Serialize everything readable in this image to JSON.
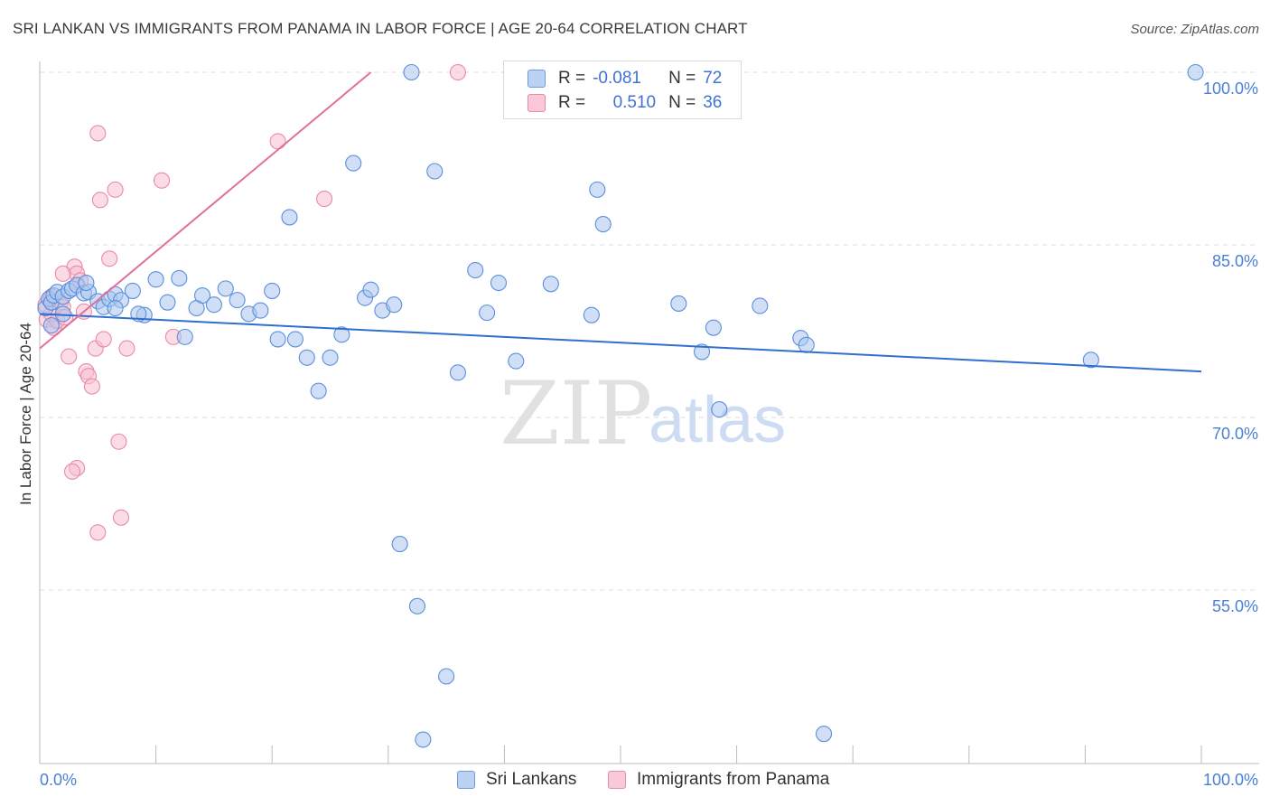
{
  "header": {
    "title": "SRI LANKAN VS IMMIGRANTS FROM PANAMA IN LABOR FORCE | AGE 20-64 CORRELATION CHART",
    "source": "Source: ZipAtlas.com"
  },
  "watermark": {
    "zip": "ZIP",
    "atlas": "atlas"
  },
  "colors": {
    "blue_fill": "#aac4ee",
    "blue_stroke": "#5b8fdc",
    "blue_line": "#2f6fcf",
    "pink_fill": "#f7bfd0",
    "pink_stroke": "#e88aa9",
    "pink_line": "#e0709a",
    "tick_text": "#4a7fd6",
    "grid": "#dcdcdc"
  },
  "legend": {
    "rows": [
      {
        "r_label": "R =",
        "r_value": "-0.081",
        "n_label": "N =",
        "n_value": "72"
      },
      {
        "r_label": "R =",
        "r_value": "0.510",
        "n_label": "N =",
        "n_value": "36"
      }
    ]
  },
  "bottom_legend": {
    "series1": "Sri Lankans",
    "series2": "Immigrants from Panama"
  },
  "chart_data": {
    "type": "scatter",
    "title": "SRI LANKAN VS IMMIGRANTS FROM PANAMA IN LABOR FORCE | AGE 20-64 CORRELATION CHART",
    "xlabel": "",
    "ylabel": "In Labor Force | Age 20-64",
    "xlim": [
      0,
      100
    ],
    "ylim": [
      40.5,
      101.5
    ],
    "x_tick_labels": [
      "0.0%",
      "100.0%"
    ],
    "y_ticks": [
      55,
      70,
      85,
      100
    ],
    "y_tick_labels": [
      "55.0%",
      "70.0%",
      "85.0%",
      "100.0%"
    ],
    "grid": true,
    "series": [
      {
        "name": "Sri Lankans",
        "R": -0.081,
        "N": 72,
        "trend": {
          "x": [
            0,
            100
          ],
          "y": [
            79.0,
            74.0
          ]
        },
        "points": [
          [
            0.5,
            79.5
          ],
          [
            0.8,
            80.3
          ],
          [
            1.0,
            80.0
          ],
          [
            1.2,
            80.6
          ],
          [
            1.5,
            80.9
          ],
          [
            2.0,
            80.5
          ],
          [
            2.5,
            81.0
          ],
          [
            2.8,
            81.2
          ],
          [
            3.2,
            81.5
          ],
          [
            3.8,
            80.8
          ],
          [
            4.2,
            80.9
          ],
          [
            5.0,
            80.1
          ],
          [
            5.5,
            79.6
          ],
          [
            6.0,
            80.3
          ],
          [
            6.5,
            80.7
          ],
          [
            7.0,
            80.2
          ],
          [
            8.0,
            81.0
          ],
          [
            9.0,
            78.9
          ],
          [
            8.5,
            79.0
          ],
          [
            10.0,
            82.0
          ],
          [
            11.0,
            80.0
          ],
          [
            12.0,
            82.1
          ],
          [
            12.5,
            77.0
          ],
          [
            13.5,
            79.5
          ],
          [
            14.0,
            80.6
          ],
          [
            15.0,
            79.8
          ],
          [
            16.0,
            81.2
          ],
          [
            17.0,
            80.2
          ],
          [
            18.0,
            79.0
          ],
          [
            19.0,
            79.3
          ],
          [
            20.0,
            81.0
          ],
          [
            20.5,
            76.8
          ],
          [
            21.5,
            87.4
          ],
          [
            22.0,
            76.8
          ],
          [
            23.0,
            75.2
          ],
          [
            24.0,
            72.3
          ],
          [
            25.0,
            75.2
          ],
          [
            26.0,
            77.2
          ],
          [
            27.0,
            92.1
          ],
          [
            28.0,
            80.4
          ],
          [
            28.5,
            81.1
          ],
          [
            29.5,
            79.3
          ],
          [
            30.5,
            79.8
          ],
          [
            31.0,
            59.0
          ],
          [
            32.0,
            100.0
          ],
          [
            32.5,
            53.6
          ],
          [
            33.0,
            42.0
          ],
          [
            34.0,
            91.4
          ],
          [
            35.0,
            47.5
          ],
          [
            36.0,
            73.9
          ],
          [
            37.5,
            82.8
          ],
          [
            38.5,
            79.1
          ],
          [
            39.5,
            81.7
          ],
          [
            41.0,
            74.9
          ],
          [
            44.0,
            81.6
          ],
          [
            47.5,
            78.9
          ],
          [
            48.0,
            89.8
          ],
          [
            48.5,
            86.8
          ],
          [
            55.0,
            79.9
          ],
          [
            57.0,
            75.7
          ],
          [
            58.0,
            77.8
          ],
          [
            58.5,
            70.7
          ],
          [
            62.0,
            79.7
          ],
          [
            65.5,
            76.9
          ],
          [
            66.0,
            76.3
          ],
          [
            67.5,
            42.5
          ],
          [
            90.5,
            75.0
          ],
          [
            99.5,
            100.0
          ],
          [
            1.0,
            78.0
          ],
          [
            4.0,
            81.7
          ],
          [
            2.0,
            79.0
          ],
          [
            6.5,
            79.5
          ]
        ]
      },
      {
        "name": "Immigrants from Panama",
        "R": 0.51,
        "N": 36,
        "trend": {
          "x": [
            0,
            28.5
          ],
          "y": [
            76.0,
            100.0
          ]
        },
        "points": [
          [
            0.5,
            79.8
          ],
          [
            0.6,
            78.5
          ],
          [
            0.8,
            80.3
          ],
          [
            1.0,
            79.0
          ],
          [
            1.2,
            77.8
          ],
          [
            1.5,
            78.4
          ],
          [
            1.8,
            80.0
          ],
          [
            2.0,
            79.6
          ],
          [
            2.2,
            78.7
          ],
          [
            2.5,
            75.3
          ],
          [
            3.0,
            83.1
          ],
          [
            3.2,
            82.5
          ],
          [
            3.5,
            81.9
          ],
          [
            3.8,
            79.2
          ],
          [
            4.0,
            74.0
          ],
          [
            4.2,
            73.6
          ],
          [
            4.5,
            72.7
          ],
          [
            4.8,
            76.0
          ],
          [
            5.0,
            94.7
          ],
          [
            5.2,
            88.9
          ],
          [
            5.5,
            76.8
          ],
          [
            6.0,
            83.8
          ],
          [
            6.5,
            89.8
          ],
          [
            6.8,
            67.9
          ],
          [
            7.0,
            61.3
          ],
          [
            7.5,
            76.0
          ],
          [
            3.2,
            65.6
          ],
          [
            2.8,
            65.3
          ],
          [
            5.0,
            60.0
          ],
          [
            10.5,
            90.6
          ],
          [
            11.5,
            77.0
          ],
          [
            20.5,
            94.0
          ],
          [
            24.5,
            89.0
          ],
          [
            36.0,
            100.0
          ],
          [
            1.0,
            80.5
          ],
          [
            2.0,
            82.5
          ]
        ]
      }
    ]
  }
}
